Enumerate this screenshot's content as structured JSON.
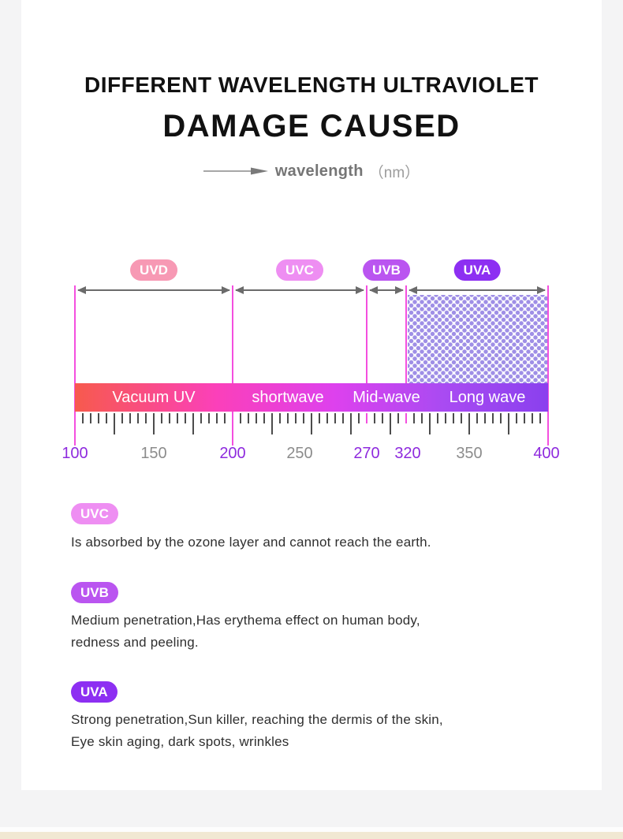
{
  "page": {
    "background": "#f4f4f5",
    "card_color": "#ffffff",
    "footer_strip_color": "#f1e8d3"
  },
  "header": {
    "title_line1": "DIFFERENT WAVELENGTH ULTRAVIOLET",
    "title_line2": "DAMAGE CAUSED",
    "axis_label": "wavelength",
    "axis_unit": "（nm）"
  },
  "diagram": {
    "bands": [
      {
        "badge": "UVD",
        "badge_color": "#f799b4",
        "range_label": "Vacuum UV",
        "from": 100,
        "to": 200
      },
      {
        "badge": "UVC",
        "badge_color": "#ee8ef2",
        "range_label": "shortwave",
        "from": 200,
        "to": 270
      },
      {
        "badge": "UVB",
        "badge_color": "#ba55f0",
        "range_label": "Mid-wave",
        "from": 270,
        "to": 320
      },
      {
        "badge": "UVA",
        "badge_color": "#8d2ff2",
        "range_label": "Long wave",
        "from": 320,
        "to": 400,
        "pattern": "dots"
      }
    ],
    "scale_labels": [
      {
        "text": "100",
        "highlight": true
      },
      {
        "text": "150",
        "highlight": false
      },
      {
        "text": "200",
        "highlight": true
      },
      {
        "text": "250",
        "highlight": false
      },
      {
        "text": "270",
        "highlight": true
      },
      {
        "text": "320",
        "highlight": true
      },
      {
        "text": "350",
        "highlight": false
      },
      {
        "text": "400",
        "highlight": true
      }
    ],
    "colors": {
      "line": "#f44fdf",
      "tick": "#4c4c4c",
      "label_highlight": "#8e2ade",
      "label_gray": "#8c8c8c",
      "arrow": "#6b6b6b",
      "dots": "#9f8fe6",
      "bar_gradient": [
        "#f75a4d",
        "#fb40ba",
        "#dd41ee",
        "#a94bf2",
        "#8a40ee"
      ]
    }
  },
  "sections": [
    {
      "badge": "UVC",
      "color": "#ee8ef2",
      "lines": [
        "Is absorbed by the ozone layer and cannot reach the earth."
      ]
    },
    {
      "badge": "UVB",
      "color": "#ba55f0",
      "lines": [
        "Medium penetration,Has erythema effect on human body,",
        "redness and peeling."
      ]
    },
    {
      "badge": "UVA",
      "color": "#8d2ff2",
      "lines": [
        "Strong penetration,Sun killer, reaching the dermis of the skin,",
        "Eye skin aging, dark spots, wrinkles"
      ]
    }
  ]
}
